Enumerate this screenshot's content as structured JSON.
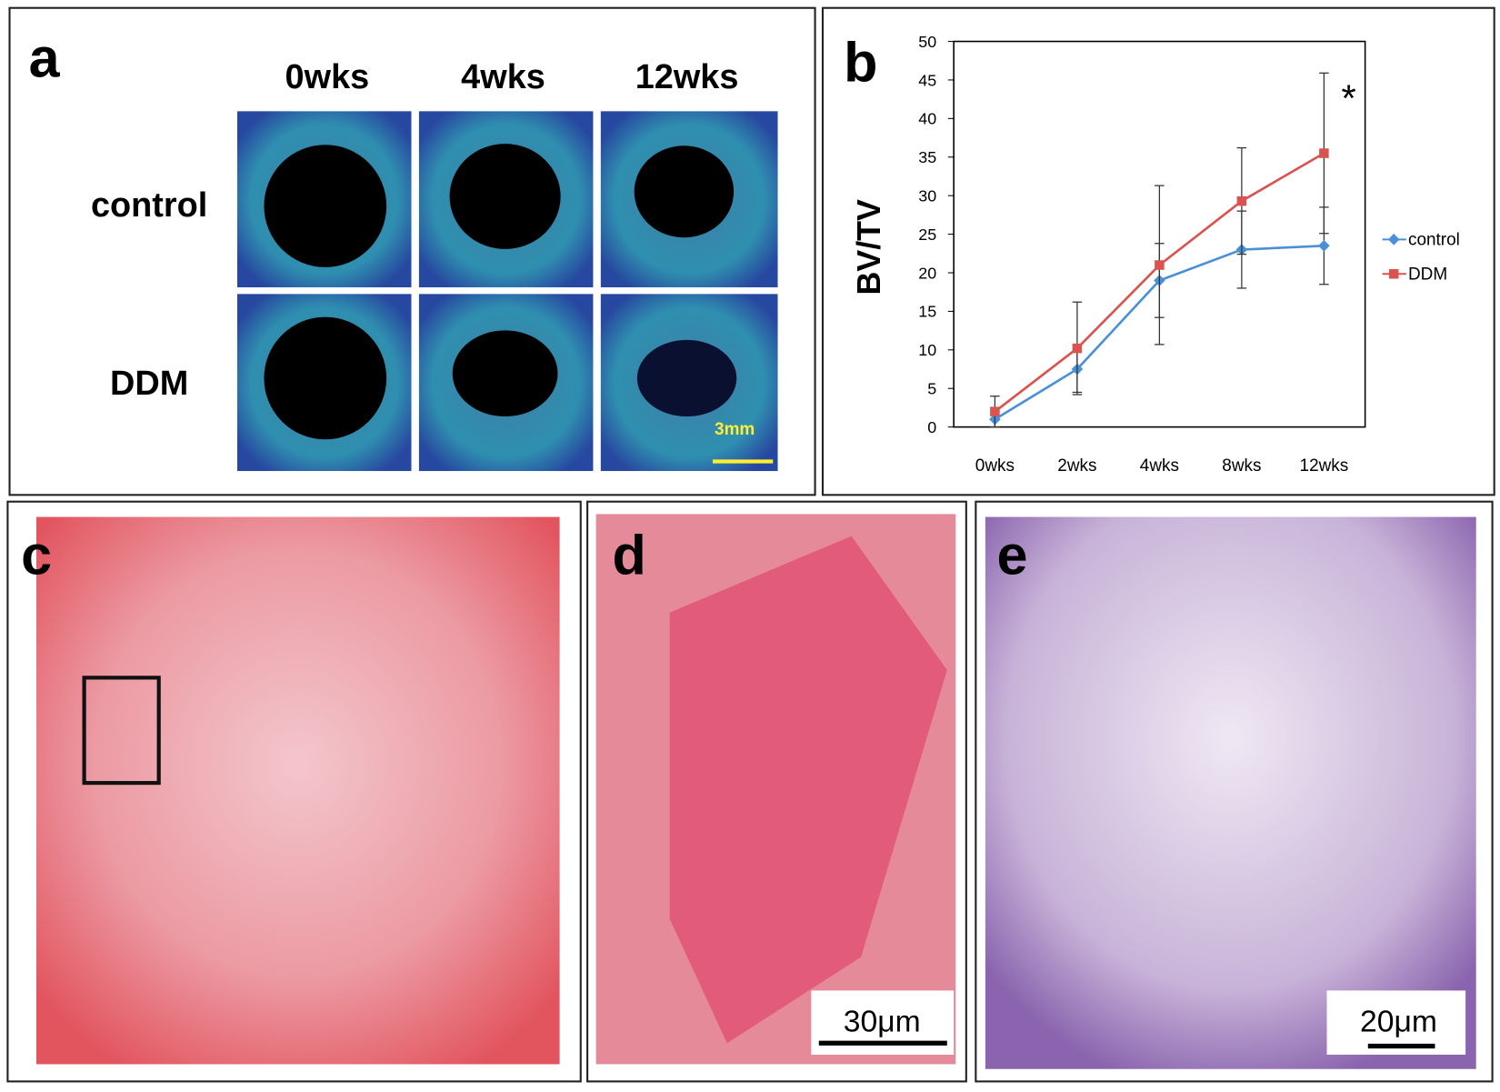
{
  "panel_labels": [
    "a",
    "b",
    "c",
    "d",
    "e"
  ],
  "panel_a": {
    "columns": [
      "0wks",
      "4wks",
      "12wks"
    ],
    "rows": [
      "control",
      "DDM"
    ],
    "scale_bar": "3mm"
  },
  "chart_data": {
    "type": "line",
    "y_label": "BV/TV",
    "annotation": "*",
    "categories": [
      "0wks",
      "2wks",
      "4wks",
      "8wks",
      "12wks"
    ],
    "series": [
      {
        "name": "control",
        "color": "#4a90d9",
        "marker": "diamond",
        "values": [
          1,
          7.5,
          19,
          23,
          23.5
        ],
        "errors": [
          1,
          3,
          4.8,
          5,
          5
        ]
      },
      {
        "name": "DDM",
        "color": "#d9534f",
        "marker": "square",
        "values": [
          2,
          10.2,
          21,
          29.3,
          35.5
        ],
        "errors": [
          2,
          6,
          10.3,
          6.9,
          10.4
        ]
      }
    ],
    "ylim": [
      0,
      50
    ],
    "yticks": [
      0,
      5,
      10,
      15,
      20,
      25,
      30,
      35,
      40,
      45,
      50
    ],
    "grid": false,
    "legend": "right"
  },
  "scale_bars": {
    "d": "30μm",
    "e": "20μm"
  }
}
